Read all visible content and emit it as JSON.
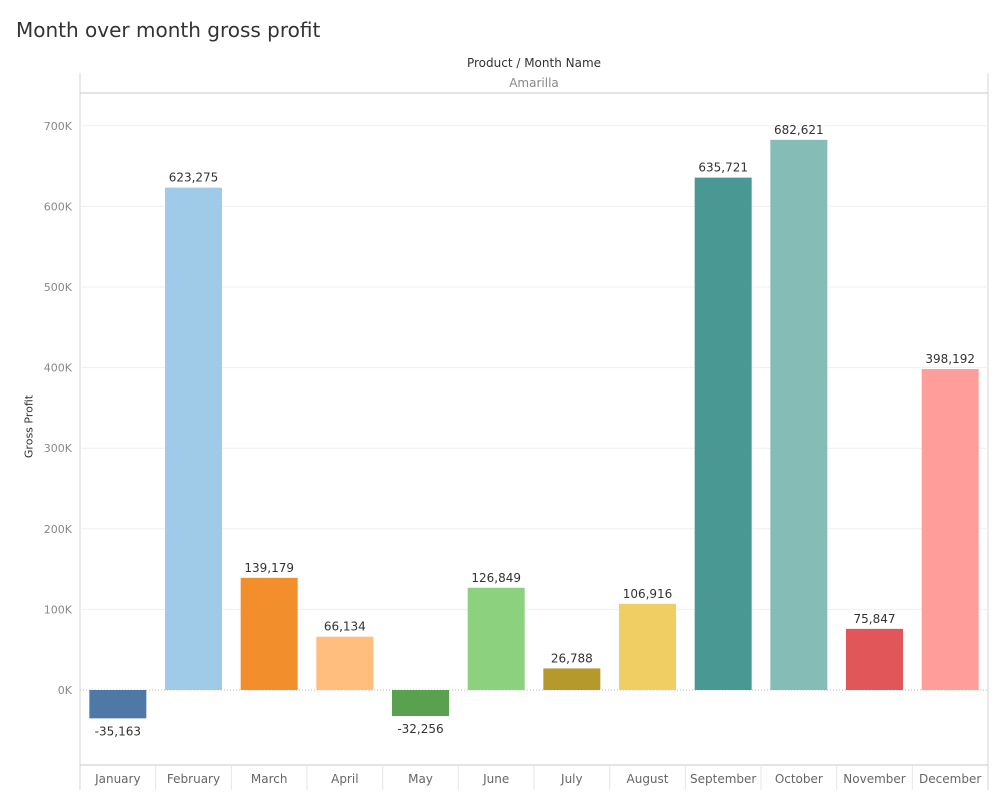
{
  "title": "Month over month gross profit",
  "header_label": "Product / Month Name",
  "panel_label": "Amarilla",
  "chart_data": {
    "type": "bar",
    "title": "Month over month gross profit",
    "xlabel": "",
    "ylabel": "Gross Profit",
    "ylim": [
      -87500,
      760000
    ],
    "grid": true,
    "yticks": [
      0,
      100000,
      200000,
      300000,
      400000,
      500000,
      600000,
      700000
    ],
    "ytick_labels": [
      "0K",
      "100K",
      "200K",
      "300K",
      "400K",
      "500K",
      "600K",
      "700K"
    ],
    "categories": [
      "January",
      "February",
      "March",
      "April",
      "May",
      "June",
      "July",
      "August",
      "September",
      "October",
      "November",
      "December"
    ],
    "values": [
      -35163,
      623275,
      139179,
      66134,
      -32256,
      126849,
      26788,
      106916,
      635721,
      682621,
      75847,
      398192
    ],
    "data_labels": [
      "-35,163",
      "623,275",
      "139,179",
      "66,134",
      "-32,256",
      "126,849",
      "26,788",
      "106,916",
      "635,721",
      "682,621",
      "75,847",
      "398,192"
    ],
    "colors": [
      "#4e79a7",
      "#a0cbe8",
      "#f28e2b",
      "#ffbe7d",
      "#59a14f",
      "#8cd17d",
      "#b6992d",
      "#f1ce63",
      "#499894",
      "#86bcb6",
      "#e15759",
      "#ff9d9a"
    ]
  }
}
